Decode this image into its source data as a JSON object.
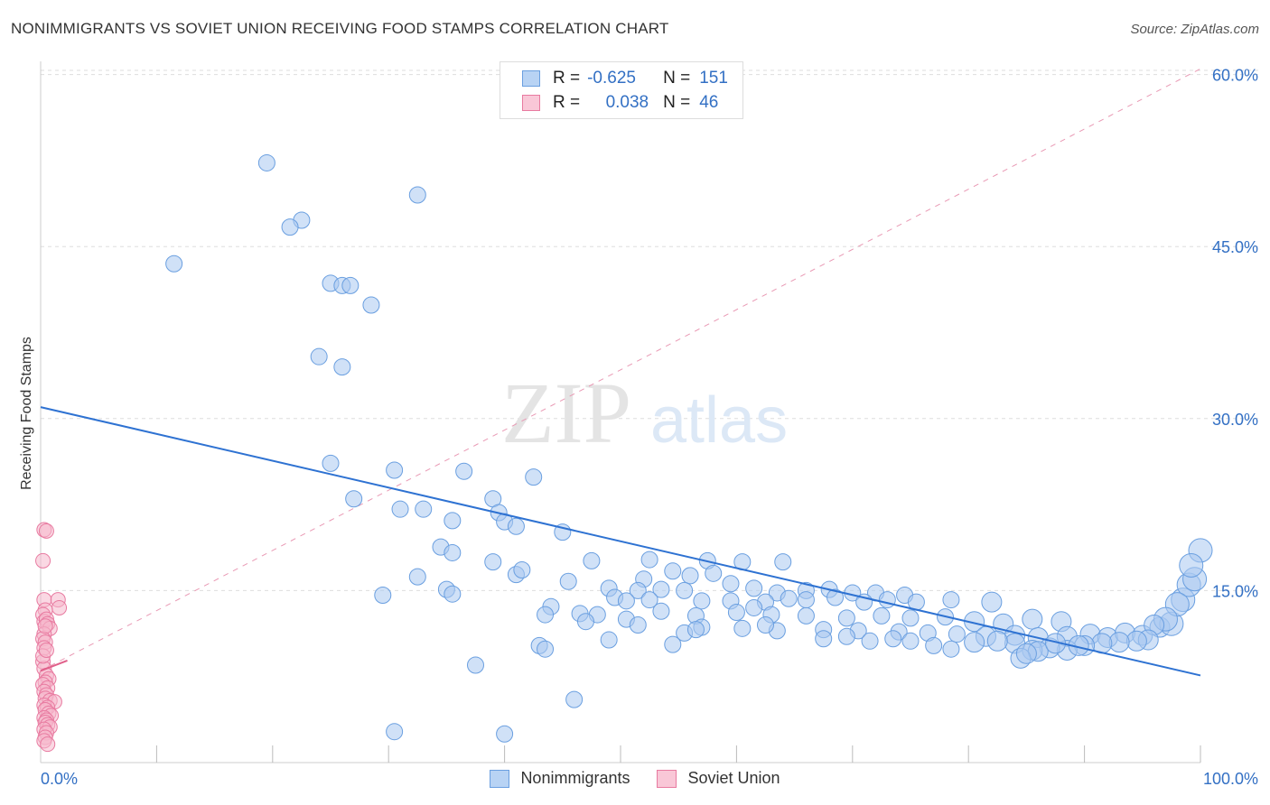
{
  "title": "NONIMMIGRANTS VS SOVIET UNION RECEIVING FOOD STAMPS CORRELATION CHART",
  "source": "Source: ZipAtlas.com",
  "watermark": {
    "zip": "ZIP",
    "atlas": "atlas"
  },
  "colors": {
    "blue_fill": "#a9c8f0",
    "blue_stroke": "#6a9fe0",
    "blue_line": "#2e72d2",
    "pink_fill": "#f6b8cc",
    "pink_stroke": "#e87aa0",
    "pink_line": "#e0608a",
    "tick_label": "#3370c4",
    "grid": "#dddddd"
  },
  "stats": [
    {
      "r_label": "R =",
      "r_value": "-0.625",
      "n_label": "N =",
      "n_value": "151"
    },
    {
      "r_label": "R =",
      "r_value": "0.038",
      "n_label": "N =",
      "n_value": "46"
    }
  ],
  "legend": [
    "Nonimmigrants",
    "Soviet Union"
  ],
  "chart_data": {
    "type": "scatter",
    "title": "NONIMMIGRANTS VS SOVIET UNION RECEIVING FOOD STAMPS CORRELATION CHART",
    "xlabel": "",
    "ylabel": "Receiving Food Stamps",
    "xlim": [
      0,
      100
    ],
    "ylim": [
      0,
      60
    ],
    "x_tick_labels": [
      "0.0%",
      "100.0%"
    ],
    "y_ticks": [
      15,
      30,
      45,
      60
    ],
    "y_tick_labels": [
      "15.0%",
      "30.0%",
      "45.0%",
      "60.0%"
    ],
    "grid": true,
    "legend_position": "bottom",
    "series": [
      {
        "name": "Nonimmigrants",
        "color": "#a9c8f0",
        "trend": [
          [
            0,
            31.0
          ],
          [
            100,
            7.6
          ]
        ],
        "points": [
          [
            19.5,
            52.3
          ],
          [
            32.5,
            49.5
          ],
          [
            22.5,
            47.3
          ],
          [
            21.5,
            46.7
          ],
          [
            11.5,
            43.5
          ],
          [
            25.0,
            41.8
          ],
          [
            26.0,
            41.6
          ],
          [
            26.7,
            41.6
          ],
          [
            28.5,
            39.9
          ],
          [
            24.0,
            35.4
          ],
          [
            26.0,
            34.5
          ],
          [
            25.0,
            26.1
          ],
          [
            30.5,
            25.5
          ],
          [
            36.5,
            25.4
          ],
          [
            42.5,
            24.9
          ],
          [
            27.0,
            23.0
          ],
          [
            39.0,
            23.0
          ],
          [
            31.0,
            22.1
          ],
          [
            33.0,
            22.1
          ],
          [
            35.5,
            21.1
          ],
          [
            39.5,
            21.8
          ],
          [
            40.0,
            21.0
          ],
          [
            41.0,
            20.6
          ],
          [
            45.0,
            20.1
          ],
          [
            34.5,
            18.8
          ],
          [
            35.5,
            18.3
          ],
          [
            39.0,
            17.5
          ],
          [
            47.5,
            17.6
          ],
          [
            52.5,
            17.7
          ],
          [
            57.5,
            17.6
          ],
          [
            32.5,
            16.2
          ],
          [
            41.0,
            16.4
          ],
          [
            41.5,
            16.8
          ],
          [
            45.5,
            15.8
          ],
          [
            52.0,
            16.0
          ],
          [
            54.5,
            16.7
          ],
          [
            56.0,
            16.3
          ],
          [
            58.0,
            16.5
          ],
          [
            64.0,
            17.5
          ],
          [
            60.5,
            17.5
          ],
          [
            35.0,
            15.1
          ],
          [
            49.0,
            15.2
          ],
          [
            51.5,
            15.0
          ],
          [
            53.5,
            15.1
          ],
          [
            55.5,
            15.0
          ],
          [
            59.5,
            15.6
          ],
          [
            61.5,
            15.2
          ],
          [
            63.5,
            14.8
          ],
          [
            66.0,
            15.0
          ],
          [
            68.0,
            15.1
          ],
          [
            70.0,
            14.8
          ],
          [
            72.0,
            14.8
          ],
          [
            74.5,
            14.6
          ],
          [
            29.5,
            14.6
          ],
          [
            35.5,
            14.7
          ],
          [
            49.5,
            14.4
          ],
          [
            50.5,
            14.1
          ],
          [
            52.5,
            14.2
          ],
          [
            57.0,
            14.1
          ],
          [
            59.5,
            14.1
          ],
          [
            62.5,
            14.0
          ],
          [
            64.5,
            14.3
          ],
          [
            66.0,
            14.2
          ],
          [
            68.5,
            14.4
          ],
          [
            71.0,
            14.0
          ],
          [
            73.0,
            14.2
          ],
          [
            75.5,
            14.0
          ],
          [
            78.5,
            14.2
          ],
          [
            82.0,
            14.0
          ],
          [
            44.0,
            13.6
          ],
          [
            46.5,
            13.0
          ],
          [
            48.0,
            12.9
          ],
          [
            50.5,
            12.5
          ],
          [
            53.5,
            13.2
          ],
          [
            56.5,
            12.8
          ],
          [
            60.0,
            13.1
          ],
          [
            63.0,
            12.9
          ],
          [
            66.0,
            12.8
          ],
          [
            69.5,
            12.6
          ],
          [
            72.5,
            12.8
          ],
          [
            75.0,
            12.6
          ],
          [
            78.0,
            12.7
          ],
          [
            80.5,
            12.3
          ],
          [
            83.0,
            12.1
          ],
          [
            85.5,
            12.5
          ],
          [
            88.0,
            12.3
          ],
          [
            43.5,
            12.9
          ],
          [
            47.0,
            12.3
          ],
          [
            51.5,
            12.0
          ],
          [
            57.0,
            11.8
          ],
          [
            60.5,
            11.7
          ],
          [
            63.5,
            11.5
          ],
          [
            67.5,
            11.6
          ],
          [
            70.5,
            11.5
          ],
          [
            74.0,
            11.4
          ],
          [
            76.5,
            11.3
          ],
          [
            79.0,
            11.2
          ],
          [
            81.5,
            11.0
          ],
          [
            84.0,
            11.1
          ],
          [
            86.0,
            10.9
          ],
          [
            88.5,
            11.0
          ],
          [
            90.5,
            11.2
          ],
          [
            92.0,
            10.9
          ],
          [
            93.5,
            11.3
          ],
          [
            95.0,
            11.1
          ],
          [
            96.5,
            11.8
          ],
          [
            97.5,
            12.1
          ],
          [
            98.5,
            14.2
          ],
          [
            99.0,
            15.5
          ],
          [
            99.5,
            16.0
          ],
          [
            100.0,
            18.5
          ],
          [
            99.2,
            17.2
          ],
          [
            98.0,
            13.8
          ],
          [
            97.0,
            12.5
          ],
          [
            96.0,
            12.0
          ],
          [
            95.5,
            10.7
          ],
          [
            94.5,
            10.6
          ],
          [
            93.0,
            10.5
          ],
          [
            91.5,
            10.4
          ],
          [
            90.0,
            10.2
          ],
          [
            88.5,
            9.8
          ],
          [
            87.0,
            10.0
          ],
          [
            85.5,
            9.8
          ],
          [
            84.0,
            10.4
          ],
          [
            82.5,
            10.6
          ],
          [
            80.5,
            10.5
          ],
          [
            78.5,
            9.9
          ],
          [
            77.0,
            10.2
          ],
          [
            75.0,
            10.6
          ],
          [
            73.5,
            10.8
          ],
          [
            71.5,
            10.6
          ],
          [
            69.5,
            11.0
          ],
          [
            67.5,
            10.8
          ],
          [
            43.0,
            10.2
          ],
          [
            43.5,
            9.9
          ],
          [
            49.0,
            10.7
          ],
          [
            54.5,
            10.3
          ],
          [
            55.5,
            11.3
          ],
          [
            56.5,
            11.6
          ],
          [
            86.0,
            9.7
          ],
          [
            84.5,
            9.1
          ],
          [
            85.0,
            9.5
          ],
          [
            87.5,
            10.4
          ],
          [
            89.5,
            10.2
          ],
          [
            37.5,
            8.5
          ],
          [
            46.0,
            5.5
          ],
          [
            30.5,
            2.7
          ],
          [
            40.0,
            2.5
          ],
          [
            61.5,
            13.5
          ],
          [
            62.5,
            12.0
          ]
        ]
      },
      {
        "name": "Soviet Union",
        "color": "#f6b8cc",
        "trend": [
          [
            0,
            8.0
          ],
          [
            2.3,
            8.9
          ]
        ],
        "points": [
          [
            0.3,
            20.3
          ],
          [
            0.5,
            20.2
          ],
          [
            0.2,
            17.6
          ],
          [
            0.3,
            14.2
          ],
          [
            1.5,
            14.2
          ],
          [
            1.6,
            13.5
          ],
          [
            0.4,
            13.3
          ],
          [
            0.2,
            12.9
          ],
          [
            0.3,
            12.3
          ],
          [
            0.5,
            12.5
          ],
          [
            0.6,
            12.1
          ],
          [
            0.8,
            11.7
          ],
          [
            0.3,
            11.2
          ],
          [
            0.2,
            10.8
          ],
          [
            0.4,
            10.5
          ],
          [
            0.3,
            10.0
          ],
          [
            0.2,
            8.8
          ],
          [
            0.3,
            8.2
          ],
          [
            0.5,
            7.6
          ],
          [
            0.7,
            7.3
          ],
          [
            0.4,
            7.0
          ],
          [
            0.2,
            6.8
          ],
          [
            0.6,
            6.5
          ],
          [
            0.3,
            6.2
          ],
          [
            0.5,
            5.9
          ],
          [
            0.4,
            5.6
          ],
          [
            0.8,
            5.4
          ],
          [
            1.2,
            5.3
          ],
          [
            0.3,
            5.0
          ],
          [
            0.6,
            4.8
          ],
          [
            0.4,
            4.6
          ],
          [
            0.7,
            4.3
          ],
          [
            0.9,
            4.1
          ],
          [
            0.3,
            3.9
          ],
          [
            0.5,
            3.7
          ],
          [
            0.4,
            3.5
          ],
          [
            0.6,
            3.3
          ],
          [
            0.8,
            3.1
          ],
          [
            0.3,
            2.9
          ],
          [
            0.5,
            2.6
          ],
          [
            0.4,
            2.2
          ],
          [
            0.3,
            1.9
          ],
          [
            0.6,
            1.6
          ],
          [
            0.2,
            9.3
          ],
          [
            0.4,
            11.9
          ],
          [
            0.5,
            9.8
          ]
        ]
      }
    ]
  }
}
